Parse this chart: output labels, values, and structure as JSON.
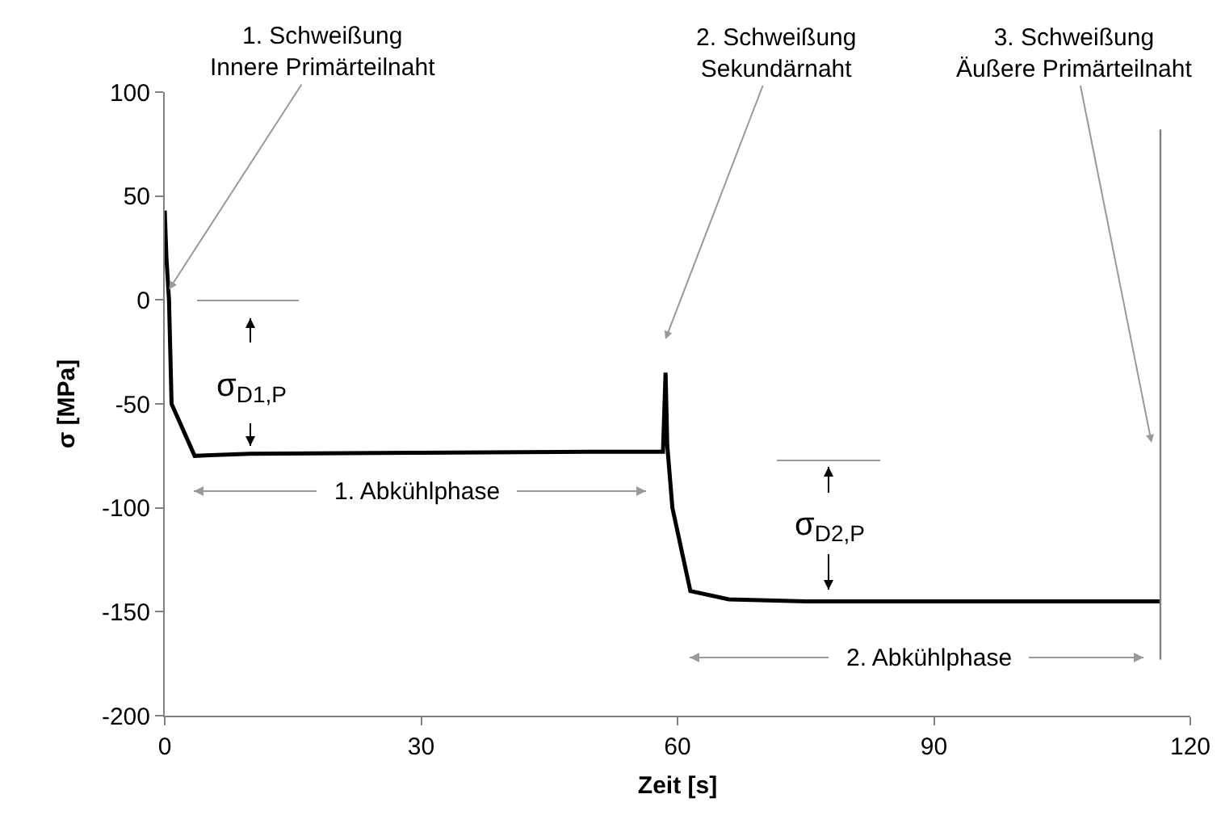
{
  "chart_data": {
    "type": "line",
    "xlabel": "Zeit [s]",
    "ylabel": "σ [MPa]",
    "x": [
      0,
      0.2,
      0.5,
      0.8,
      3.5,
      10,
      30,
      50,
      58.3,
      58.6,
      58.8,
      59.0,
      59.4,
      61.5,
      66,
      75,
      90,
      116.5
    ],
    "series": [
      {
        "color": "#000000",
        "values": [
          43,
          20,
          0,
          -50,
          -75,
          -74,
          -73.5,
          -73,
          -73,
          -35,
          -70,
          -80,
          -100,
          -140,
          -144,
          -145,
          -145,
          -145
        ]
      }
    ],
    "xlim": [
      0,
      120
    ],
    "xticks": [
      0,
      30,
      60,
      90,
      120
    ],
    "ylim": [
      -200,
      100
    ],
    "yticks": [
      -200,
      -150,
      -100,
      -50,
      0,
      50,
      100
    ],
    "grid": false,
    "marker": "none",
    "line_style": "solid",
    "ref_lines": [
      {
        "axis": "x",
        "value": 116.5,
        "color": "#808080"
      }
    ],
    "annotations": [
      {
        "text": "1. Schweißung\nInnere Primärteilnaht",
        "x": 0.5,
        "y": 5
      },
      "2. Schweißung\nSekundärnaht",
      "3. Schweißung\nÄußere Primärteilnaht",
      "σ$_{D1,P}$",
      "σ$_{D2,P}$",
      "1. Abkühlphase",
      "2. Abkühlphase"
    ]
  }
}
